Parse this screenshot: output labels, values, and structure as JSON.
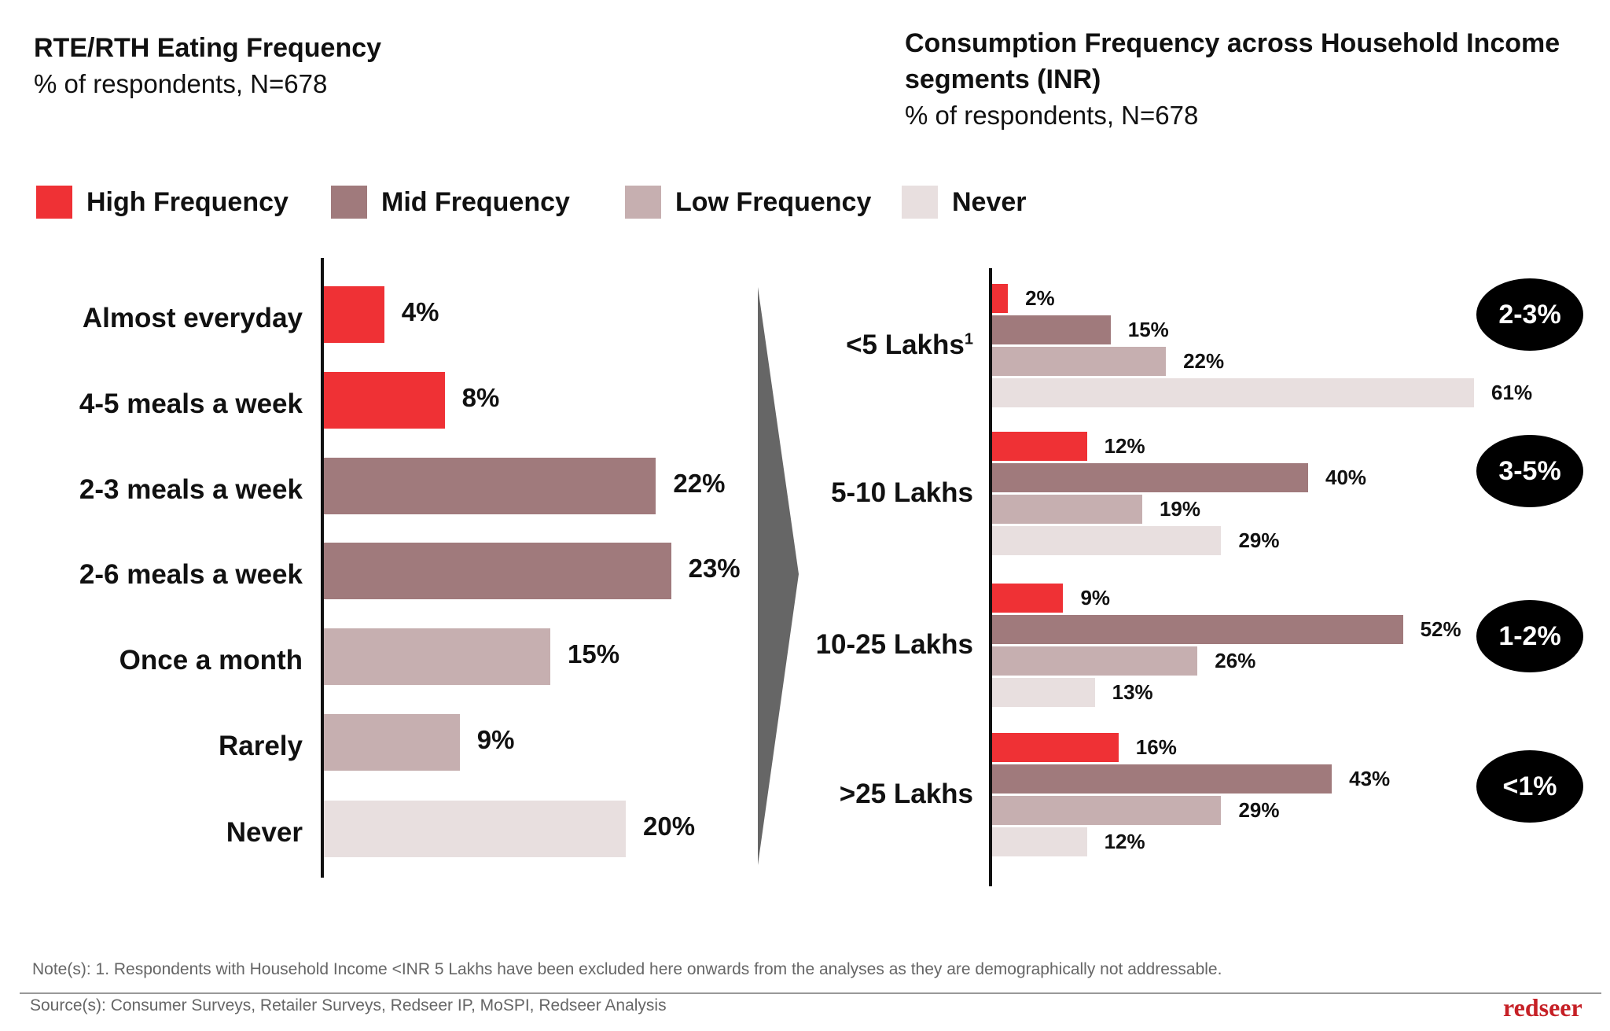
{
  "left": {
    "title": "RTE/RTH Eating Frequency",
    "subtitle": "% of respondents, N=678"
  },
  "right": {
    "title_line1": "Consumption Frequency across Household Income",
    "title_line2": "segments (INR)",
    "subtitle": "% of respondents, N=678"
  },
  "legend": [
    {
      "label": "High Frequency",
      "color": "#ef3135"
    },
    {
      "label": "Mid Frequency",
      "color": "#a07a7c"
    },
    {
      "label": "Low Frequency",
      "color": "#c6afb0"
    },
    {
      "label": "Never",
      "color": "#e8dfdf"
    }
  ],
  "chart_data": [
    {
      "type": "bar",
      "orientation": "horizontal",
      "title": "RTE/RTH Eating Frequency",
      "subtitle": "% of respondents, N=678",
      "categories": [
        "Almost everyday",
        "4-5 meals a week",
        "2-3 meals a week",
        "2-6 meals a week",
        "Once a month",
        "Rarely",
        "Never"
      ],
      "values": [
        4,
        8,
        22,
        23,
        15,
        9,
        20
      ],
      "labels": [
        "4%",
        "8%",
        "22%",
        "23%",
        "15%",
        "9%",
        "20%"
      ],
      "colors": [
        "#ef3135",
        "#ef3135",
        "#a07a7c",
        "#a07a7c",
        "#c6afb0",
        "#c6afb0",
        "#e8dfdf"
      ],
      "unit": "%"
    },
    {
      "type": "bar",
      "orientation": "horizontal",
      "grouped": true,
      "title": "Consumption Frequency across Household Income segments (INR)",
      "subtitle": "% of respondents, N=678",
      "categories": [
        "<5 Lakhs",
        "5-10 Lakhs",
        "10-25 Lakhs",
        ">25 Lakhs"
      ],
      "category_superscripts": [
        "1",
        "",
        "",
        ""
      ],
      "series": [
        {
          "name": "High Frequency",
          "color": "#ef3135",
          "values": [
            2,
            12,
            9,
            16
          ]
        },
        {
          "name": "Mid Frequency",
          "color": "#a07a7c",
          "values": [
            15,
            40,
            52,
            43
          ]
        },
        {
          "name": "Low Frequency",
          "color": "#c6afb0",
          "values": [
            22,
            19,
            26,
            29
          ]
        },
        {
          "name": "Never",
          "color": "#e8dfdf",
          "values": [
            61,
            29,
            13,
            12
          ]
        }
      ],
      "annotations": [
        "2-3%",
        "3-5%",
        "1-2%",
        "<1%"
      ],
      "unit": "%",
      "legend_position": "top"
    }
  ],
  "footer": {
    "note": "Note(s): 1. Respondents with Household Income <INR 5 Lakhs have been excluded here onwards from the analyses as they are demographically not addressable.",
    "source": "Source(s): Consumer Surveys, Retailer Surveys, Redseer IP, MoSPI, Redseer Analysis",
    "logo": "redseer"
  }
}
